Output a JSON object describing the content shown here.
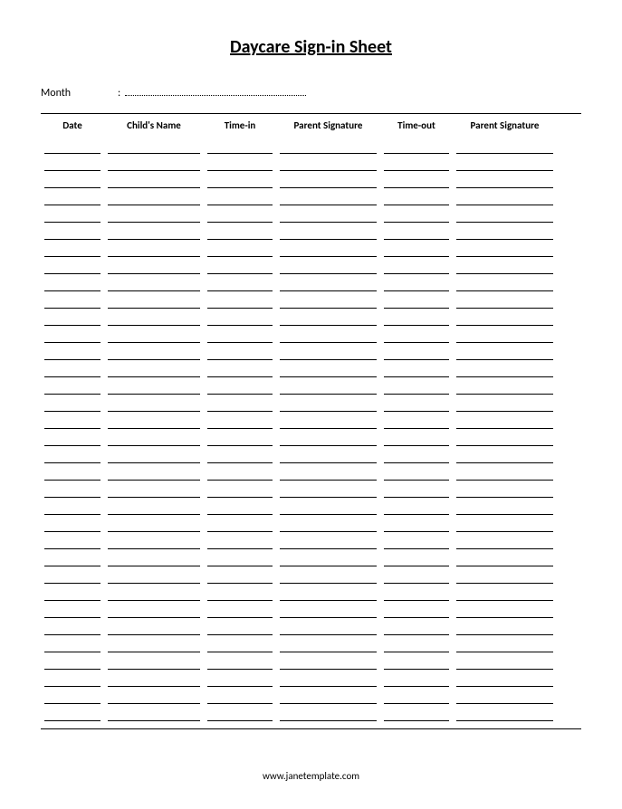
{
  "title": "Daycare Sign-in Sheet",
  "month_label": "Month",
  "columns": {
    "date": "Date",
    "child_name": "Child's Name",
    "time_in": "Time-in",
    "parent_sig_in": "Parent Signature",
    "time_out": "Time-out",
    "parent_sig_out": "Parent Signature"
  },
  "row_count": 34,
  "footer": "www.janetemplate.com",
  "styling": {
    "background_color": "#ffffff",
    "text_color": "#000000",
    "title_fontsize": 20,
    "header_fontsize": 11,
    "body_fontsize": 12,
    "footer_fontsize": 11,
    "line_color": "#000000",
    "dotted_line_color": "#000000",
    "column_widths": {
      "date": 70,
      "child_name": 110,
      "time_in": 80,
      "parent_sig_in": 115,
      "time_out": 80,
      "parent_sig_out": 115
    }
  }
}
